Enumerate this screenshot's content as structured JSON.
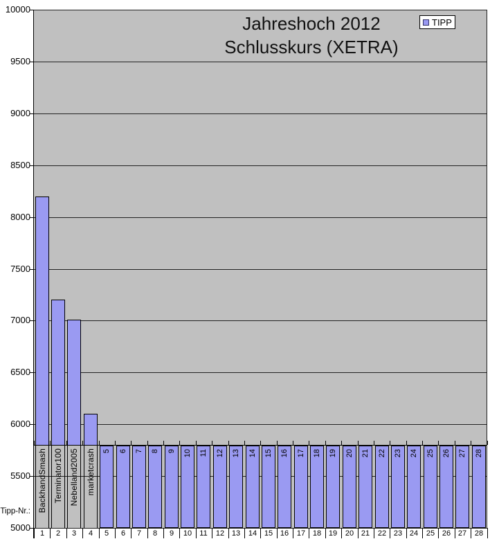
{
  "title": {
    "line1": "Jahreshoch 2012",
    "line2": "Schlusskurs (XETRA)"
  },
  "legend": {
    "label": "TIPP",
    "position": "top-right"
  },
  "axis": {
    "y_labels": [
      "10000",
      "9500",
      "9000",
      "8500",
      "8000",
      "7500",
      "7000",
      "6500",
      "6000",
      "5500",
      "5000"
    ],
    "y_min": 5000,
    "y_max": 10000,
    "y_step": 500,
    "category_axis_crossing": 5800,
    "x_level2_title": "Tipp-Nr.:",
    "x_numbers": [
      "1",
      "2",
      "3",
      "4",
      "5",
      "6",
      "7",
      "8",
      "9",
      "10",
      "11",
      "12",
      "13",
      "14",
      "15",
      "16",
      "17",
      "18",
      "19",
      "20",
      "21",
      "22",
      "23",
      "24",
      "25",
      "26",
      "27",
      "28"
    ]
  },
  "chart_data": {
    "type": "bar",
    "title": "Jahreshoch 2012 Schlusskurs (XETRA)",
    "legend_entries": [
      "TIPP"
    ],
    "legend_position": "top-right",
    "grid": true,
    "ylim": [
      5000,
      10000
    ],
    "y_tick_step": 500,
    "categories": [
      "BackhandSmash",
      "Terminator100",
      "Nebelland2005",
      "marketcrash",
      "5",
      "6",
      "7",
      "8",
      "9",
      "10",
      "11",
      "12",
      "13",
      "14",
      "15",
      "16",
      "17",
      "18",
      "19",
      "20",
      "21",
      "22",
      "23",
      "24",
      "25",
      "26",
      "27",
      "28"
    ],
    "tip_numbers": [
      1,
      2,
      3,
      4,
      5,
      6,
      7,
      8,
      9,
      10,
      11,
      12,
      13,
      14,
      15,
      16,
      17,
      18,
      19,
      20,
      21,
      22,
      23,
      24,
      25,
      26,
      27,
      28
    ],
    "series": [
      {
        "name": "TIPP",
        "values": [
          8200,
          7200,
          7010,
          6100,
          5000,
          5000,
          5000,
          5000,
          5000,
          5000,
          5000,
          5000,
          5000,
          5000,
          5000,
          5000,
          5000,
          5000,
          5000,
          5000,
          5000,
          5000,
          5000,
          5000,
          5000,
          5000,
          5000,
          5000
        ]
      }
    ]
  },
  "colors": {
    "page_bg": "#ffffff",
    "plot_bg": "#c0c0c0",
    "gridline": "#222222",
    "bar_fill": "#9a9af2",
    "bar_border": "#000000",
    "legend_marker_border": "#333366",
    "text": "#000000"
  }
}
